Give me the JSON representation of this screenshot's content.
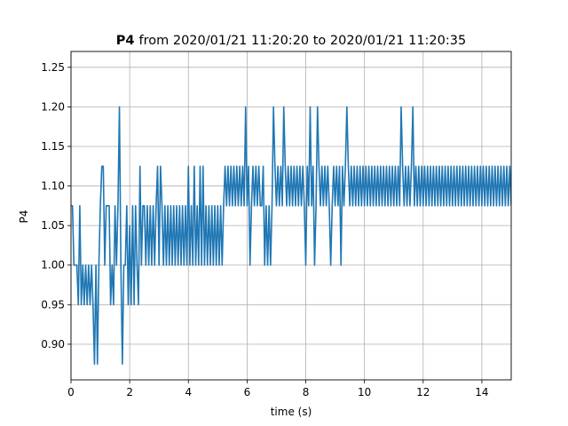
{
  "chart_data": {
    "type": "line",
    "title_prefix": "P4",
    "title_rest": "from 2020/01/21 11:20:20 to 2020/01/21 11:20:35",
    "xlabel": "time (s)",
    "ylabel": "P4",
    "xlim": [
      0,
      15
    ],
    "ylim": [
      0.855,
      1.27
    ],
    "xticks": [
      0,
      2,
      4,
      6,
      8,
      10,
      12,
      14
    ],
    "xtick_labels": [
      "0",
      "2",
      "4",
      "6",
      "8",
      "10",
      "12",
      "14"
    ],
    "yticks": [
      0.9,
      0.95,
      1.0,
      1.05,
      1.1,
      1.15,
      1.2,
      1.25
    ],
    "ytick_labels": [
      "0.90",
      "0.95",
      "1.00",
      "1.05",
      "1.10",
      "1.15",
      "1.20",
      "1.25"
    ],
    "grid": true,
    "line_color": "#1f77b4",
    "series": [
      {
        "x_start": 0,
        "x_step": 0.05,
        "values": [
          1.075,
          1.075,
          1.0,
          1.0,
          1.0,
          0.95,
          1.075,
          0.95,
          1.0,
          0.95,
          1.0,
          0.95,
          1.0,
          0.95,
          1.0,
          0.95,
          0.875,
          1.0,
          0.875,
          1.0,
          1.075,
          1.125,
          1.125,
          1.0,
          1.075,
          1.075,
          1.075,
          0.95,
          1.0,
          0.95,
          1.075,
          1.0,
          1.075,
          1.2,
          1.0,
          0.875,
          1.0,
          1.0,
          1.075,
          0.95,
          1.05,
          0.95,
          1.075,
          0.95,
          1.075,
          1.0,
          0.95,
          1.125,
          1.0,
          1.075,
          1.075,
          1.0,
          1.075,
          1.0,
          1.075,
          1.0,
          1.075,
          1.0,
          1.075,
          1.125,
          1.0,
          1.125,
          1.075,
          1.0,
          1.075,
          1.0,
          1.075,
          1.0,
          1.075,
          1.0,
          1.075,
          1.0,
          1.075,
          1.0,
          1.075,
          1.0,
          1.075,
          1.0,
          1.075,
          1.0,
          1.125,
          1.0,
          1.075,
          1.0,
          1.125,
          1.0,
          1.075,
          1.0,
          1.125,
          1.0,
          1.125,
          1.0,
          1.075,
          1.0,
          1.075,
          1.0,
          1.075,
          1.0,
          1.075,
          1.0,
          1.075,
          1.0,
          1.075,
          1.0,
          1.075,
          1.125,
          1.075,
          1.125,
          1.075,
          1.125,
          1.075,
          1.125,
          1.075,
          1.125,
          1.075,
          1.125,
          1.075,
          1.125,
          1.075,
          1.2,
          1.075,
          1.125,
          1.0,
          1.075,
          1.125,
          1.075,
          1.125,
          1.075,
          1.125,
          1.075,
          1.075,
          1.125,
          1.0,
          1.075,
          1.0,
          1.075,
          1.0,
          1.075,
          1.2,
          1.125,
          1.075,
          1.125,
          1.075,
          1.125,
          1.075,
          1.2,
          1.125,
          1.075,
          1.125,
          1.075,
          1.125,
          1.075,
          1.125,
          1.075,
          1.125,
          1.075,
          1.125,
          1.075,
          1.125,
          1.075,
          1.0,
          1.125,
          1.075,
          1.2,
          1.075,
          1.125,
          1.0,
          1.075,
          1.2,
          1.125,
          1.075,
          1.125,
          1.075,
          1.125,
          1.075,
          1.125,
          1.075,
          1.0,
          1.075,
          1.125,
          1.075,
          1.125,
          1.075,
          1.125,
          1.0,
          1.125,
          1.075,
          1.125,
          1.2,
          1.125,
          1.075,
          1.125,
          1.075,
          1.125,
          1.075,
          1.125,
          1.075,
          1.125,
          1.075,
          1.125,
          1.075,
          1.125,
          1.075,
          1.125,
          1.075,
          1.125,
          1.075,
          1.125,
          1.075,
          1.125,
          1.075,
          1.125,
          1.075,
          1.125,
          1.075,
          1.125,
          1.075,
          1.125,
          1.075,
          1.125,
          1.075,
          1.125,
          1.075,
          1.125,
          1.075,
          1.2,
          1.125,
          1.075,
          1.125,
          1.075,
          1.125,
          1.075,
          1.125,
          1.2,
          1.075,
          1.125,
          1.075,
          1.125,
          1.075,
          1.125,
          1.075,
          1.125,
          1.075,
          1.125,
          1.075,
          1.125,
          1.075,
          1.125,
          1.075,
          1.125,
          1.075,
          1.125,
          1.075,
          1.125,
          1.075,
          1.125,
          1.075,
          1.125,
          1.075,
          1.125,
          1.075,
          1.125,
          1.075,
          1.125,
          1.075,
          1.125,
          1.075,
          1.125,
          1.075,
          1.125,
          1.075,
          1.125,
          1.075,
          1.125,
          1.075,
          1.125,
          1.075,
          1.125,
          1.075,
          1.125,
          1.075,
          1.125,
          1.075,
          1.125,
          1.075,
          1.125,
          1.075,
          1.125,
          1.075,
          1.125,
          1.075,
          1.125,
          1.075,
          1.125,
          1.075,
          1.125,
          1.075,
          1.125,
          1.075,
          1.125,
          1.075
        ]
      }
    ]
  }
}
